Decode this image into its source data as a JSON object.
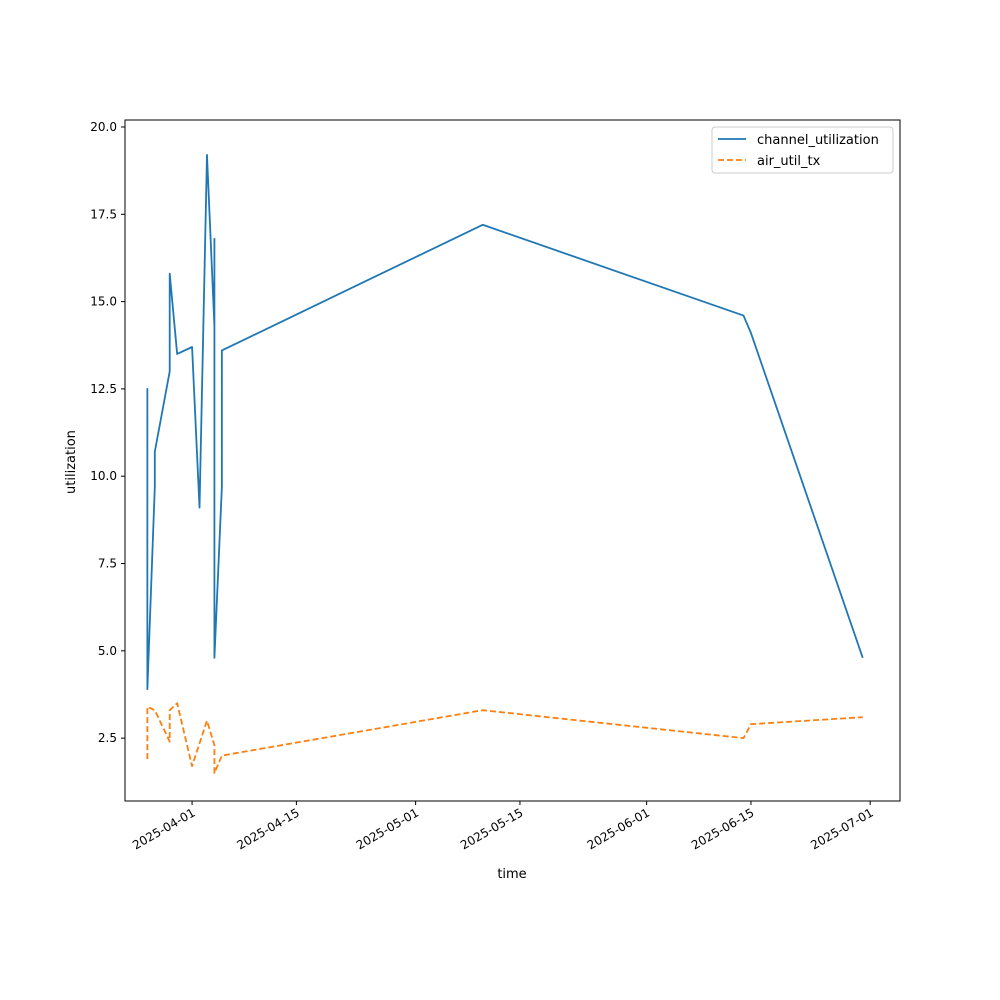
{
  "chart_data": {
    "type": "line",
    "xlabel": "time",
    "ylabel": "utilization",
    "xlim": [
      "2025-03-23",
      "2025-07-05"
    ],
    "ylim": [
      0.7,
      20.2
    ],
    "grid": false,
    "legend_position": "top-right",
    "x_ticks": [
      "2025-04-01",
      "2025-04-15",
      "2025-05-01",
      "2025-05-15",
      "2025-06-01",
      "2025-06-15",
      "2025-07-01"
    ],
    "y_ticks": [
      2.5,
      5.0,
      7.5,
      10.0,
      12.5,
      15.0,
      17.5,
      20.0
    ],
    "series": [
      {
        "name": "channel_utilization",
        "color": "#1f77b4",
        "style": "solid",
        "points": [
          [
            "2025-03-26",
            10.8
          ],
          [
            "2025-03-26",
            12.5
          ],
          [
            "2025-03-26",
            3.9
          ],
          [
            "2025-03-27",
            9.7
          ],
          [
            "2025-03-27",
            10.7
          ],
          [
            "2025-03-29",
            13.0
          ],
          [
            "2025-03-29",
            15.8
          ],
          [
            "2025-03-30",
            13.5
          ],
          [
            "2025-04-01",
            13.7
          ],
          [
            "2025-04-02",
            9.1
          ],
          [
            "2025-04-03",
            19.2
          ],
          [
            "2025-04-04",
            14.3
          ],
          [
            "2025-04-04",
            16.8
          ],
          [
            "2025-04-04",
            4.8
          ],
          [
            "2025-04-05",
            9.7
          ],
          [
            "2025-04-05",
            13.6
          ],
          [
            "2025-05-10",
            17.2
          ],
          [
            "2025-06-14",
            14.6
          ],
          [
            "2025-06-15",
            14.1
          ],
          [
            "2025-06-30",
            4.8
          ]
        ]
      },
      {
        "name": "air_util_tx",
        "color": "#ff7f0e",
        "style": "dashed",
        "points": [
          [
            "2025-03-26",
            1.9
          ],
          [
            "2025-03-26",
            3.4
          ],
          [
            "2025-03-27",
            3.3
          ],
          [
            "2025-03-29",
            2.4
          ],
          [
            "2025-03-29",
            3.3
          ],
          [
            "2025-03-30",
            3.5
          ],
          [
            "2025-04-01",
            1.7
          ],
          [
            "2025-04-03",
            3.0
          ],
          [
            "2025-04-04",
            2.3
          ],
          [
            "2025-04-04",
            1.5
          ],
          [
            "2025-04-05",
            2.0
          ],
          [
            "2025-05-10",
            3.3
          ],
          [
            "2025-06-14",
            2.5
          ],
          [
            "2025-06-15",
            2.9
          ],
          [
            "2025-06-30",
            3.1
          ]
        ]
      }
    ]
  }
}
